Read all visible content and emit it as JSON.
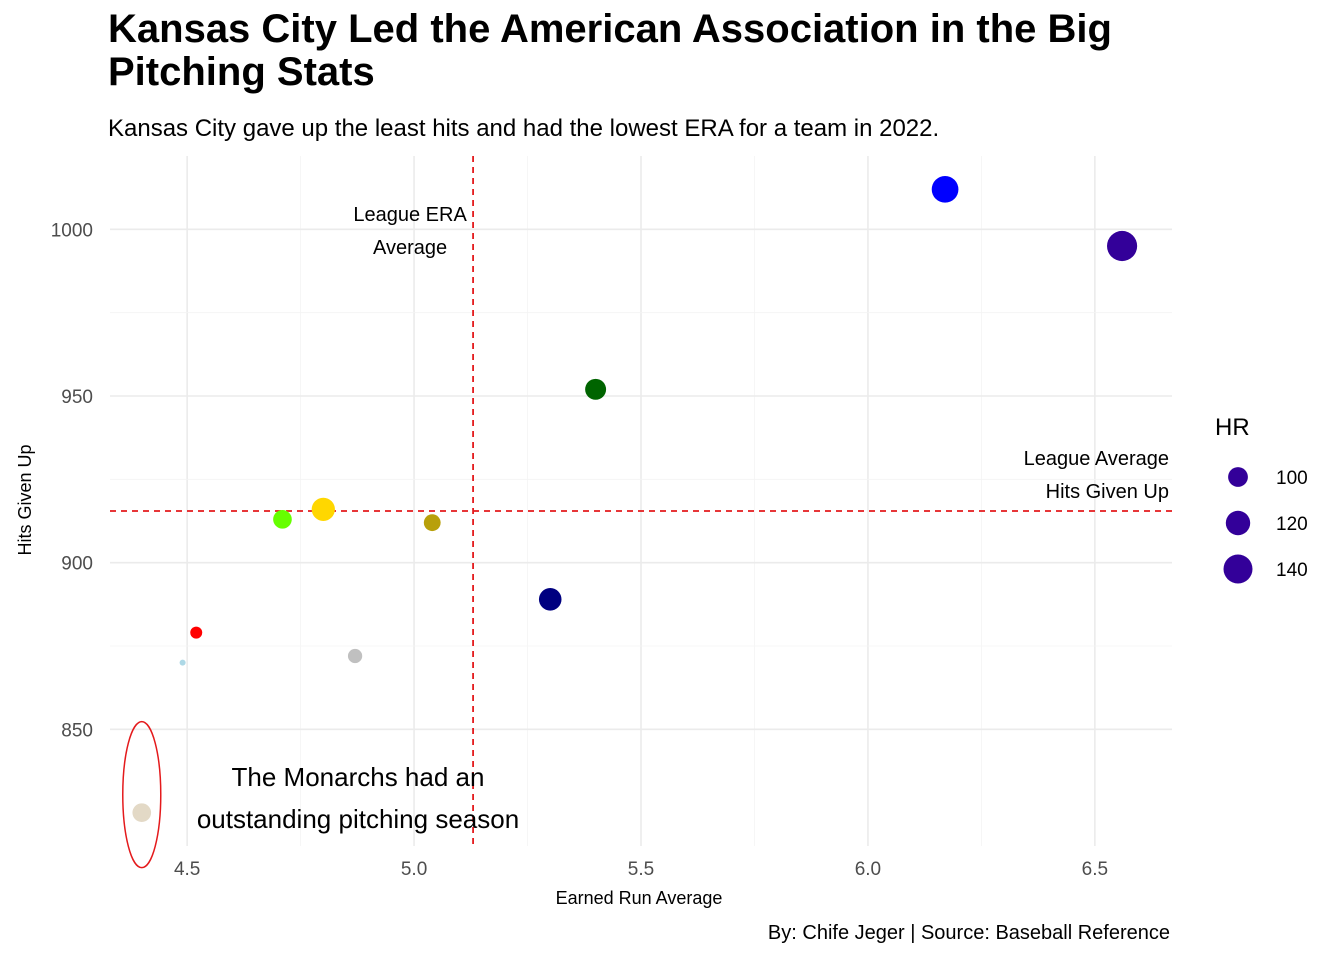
{
  "title": "Kansas City Led the American Association in the Big Pitching Stats",
  "subtitle": "Kansas City gave up the least hits and had the lowest ERA for a team in 2022.",
  "caption": "By: Chife Jeger | Source: Baseball Reference",
  "chart_data": {
    "type": "scatter",
    "xlabel": "Earned Run Average",
    "ylabel": "Hits Given Up",
    "xlim": [
      4.33,
      6.67
    ],
    "ylim": [
      815,
      1022
    ],
    "x_ticks": [
      4.5,
      5.0,
      5.5,
      6.0,
      6.5
    ],
    "x_tick_labels": [
      "4.5",
      "5.0",
      "5.5",
      "6.0",
      "6.5"
    ],
    "y_ticks": [
      850,
      900,
      950,
      1000
    ],
    "y_tick_labels": [
      "850",
      "900",
      "950",
      "1000"
    ],
    "grid": true,
    "size_legend": {
      "title": "HR",
      "position": "right",
      "color": "#330099",
      "entries": [
        {
          "value": 100,
          "label": "100"
        },
        {
          "value": 120,
          "label": "120"
        },
        {
          "value": 140,
          "label": "140"
        }
      ]
    },
    "reference_lines": [
      {
        "orientation": "vertical",
        "value": 5.13,
        "color": "#e41a1c",
        "style": "dashed",
        "label_lines": [
          "League ERA",
          "Average"
        ]
      },
      {
        "orientation": "horizontal",
        "value": 915.5,
        "color": "#e41a1c",
        "style": "dashed",
        "label_lines": [
          "League Average",
          "Hits Given Up"
        ]
      }
    ],
    "points": [
      {
        "x": 6.17,
        "y": 1012,
        "hr": 130,
        "color": "#0000ff"
      },
      {
        "x": 6.56,
        "y": 995,
        "hr": 145,
        "color": "#330099"
      },
      {
        "x": 5.4,
        "y": 952,
        "hr": 105,
        "color": "#006400"
      },
      {
        "x": 4.8,
        "y": 916,
        "hr": 115,
        "color": "#ffd700"
      },
      {
        "x": 4.71,
        "y": 913,
        "hr": 95,
        "color": "#66ff00"
      },
      {
        "x": 5.04,
        "y": 912,
        "hr": 87,
        "color": "#b8a00a"
      },
      {
        "x": 5.3,
        "y": 889,
        "hr": 112,
        "color": "#000080"
      },
      {
        "x": 4.52,
        "y": 879,
        "hr": 66,
        "color": "#ff0000"
      },
      {
        "x": 4.87,
        "y": 872,
        "hr": 76,
        "color": "#c0c0c0"
      },
      {
        "x": 4.49,
        "y": 870,
        "hr": 40,
        "color": "#add8e6"
      },
      {
        "x": 4.4,
        "y": 825,
        "hr": 95,
        "color": "#e3d9c6"
      }
    ],
    "annotations": [
      {
        "lines": [
          "The Monarchs had an",
          "outstanding pitching season"
        ],
        "x": 5.09,
        "y": 825,
        "highlight_color": "#e41a1c"
      }
    ]
  }
}
